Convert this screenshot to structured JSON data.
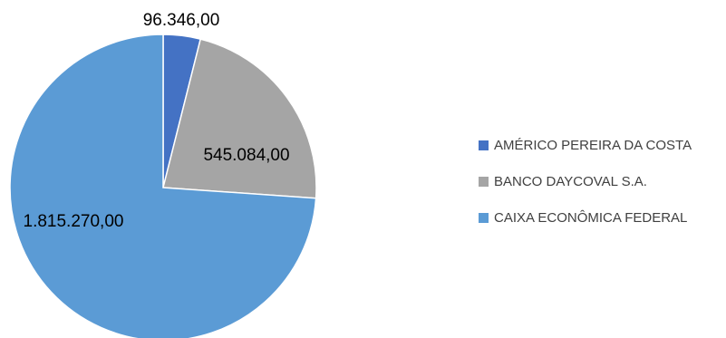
{
  "chart_data": {
    "type": "pie",
    "legend_position": "right",
    "slices": [
      {
        "name": "AMÉRICO PEREIRA DA COSTA",
        "value": 96346.0,
        "label": "96.346,00",
        "color": "#4472C4"
      },
      {
        "name": "BANCO DAYCOVAL S.A.",
        "value": 545084.0,
        "label": "545.084,00",
        "color": "#A5A5A5"
      },
      {
        "name": "CAIXA ECONÔMICA FEDERAL",
        "value": 1815270.0,
        "label": "1.815.270,00",
        "color": "#5B9BD5"
      }
    ]
  }
}
